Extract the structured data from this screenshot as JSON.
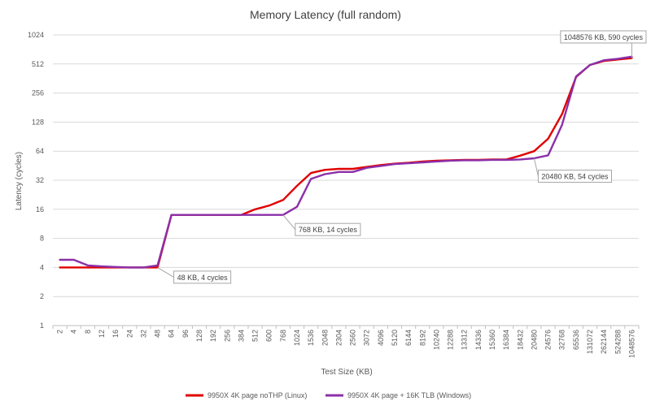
{
  "chart_data": {
    "type": "line",
    "title": "Memory Latency (full random)",
    "xlabel": "Test Size (KB)",
    "ylabel": "Latency (cycles)",
    "y_scale": "log2",
    "ylim": [
      1,
      1024
    ],
    "y_ticks": [
      "1",
      "2",
      "4",
      "8",
      "16",
      "32",
      "64",
      "128",
      "256",
      "512",
      "1024"
    ],
    "grid": "horizontal",
    "legend_position": "bottom",
    "categories": [
      "2",
      "4",
      "8",
      "12",
      "16",
      "24",
      "32",
      "48",
      "64",
      "96",
      "128",
      "192",
      "256",
      "384",
      "512",
      "600",
      "768",
      "1024",
      "1536",
      "2048",
      "2304",
      "2560",
      "3072",
      "4096",
      "5120",
      "6144",
      "8192",
      "10240",
      "12288",
      "13312",
      "14336",
      "15360",
      "16384",
      "18432",
      "20480",
      "24576",
      "32768",
      "65536",
      "131072",
      "262144",
      "524288",
      "1048576"
    ],
    "series": [
      {
        "name": "9950X 4K page noTHP (Linux)",
        "color": "#e00000",
        "values": [
          4,
          4,
          4,
          4,
          4,
          4,
          4,
          4,
          14,
          14,
          14,
          14,
          14,
          14,
          16,
          17.5,
          20,
          28,
          38,
          41,
          42,
          42,
          44,
          46,
          47.5,
          48.5,
          50,
          51,
          51.5,
          52,
          52,
          52.5,
          52.5,
          57.5,
          64,
          86,
          155,
          375,
          500,
          550,
          570,
          590
        ]
      },
      {
        "name": "9950X 4K page + 16K TLB (Windows)",
        "color": "#8b2fa8",
        "values": [
          4.8,
          4.8,
          4.2,
          4.1,
          4.05,
          4,
          4,
          4.2,
          14,
          14,
          14,
          14,
          14,
          14,
          14,
          14,
          14,
          17,
          33,
          37,
          39,
          39,
          43,
          45,
          47,
          48,
          49,
          50,
          51,
          51.5,
          51.5,
          52,
          52,
          52.5,
          54,
          58,
          120,
          380,
          500,
          560,
          580,
          610
        ]
      }
    ],
    "annotations": [
      {
        "text": "48 KB, 4 cycles",
        "category": "48",
        "value": 4
      },
      {
        "text": "768 KB, 14 cycles",
        "category": "768",
        "value": 14
      },
      {
        "text": "20480 KB, 54 cycles",
        "category": "20480",
        "value": 54
      },
      {
        "text": "1048576 KB, 590 cycles",
        "category": "1048576",
        "value": 590
      }
    ]
  }
}
